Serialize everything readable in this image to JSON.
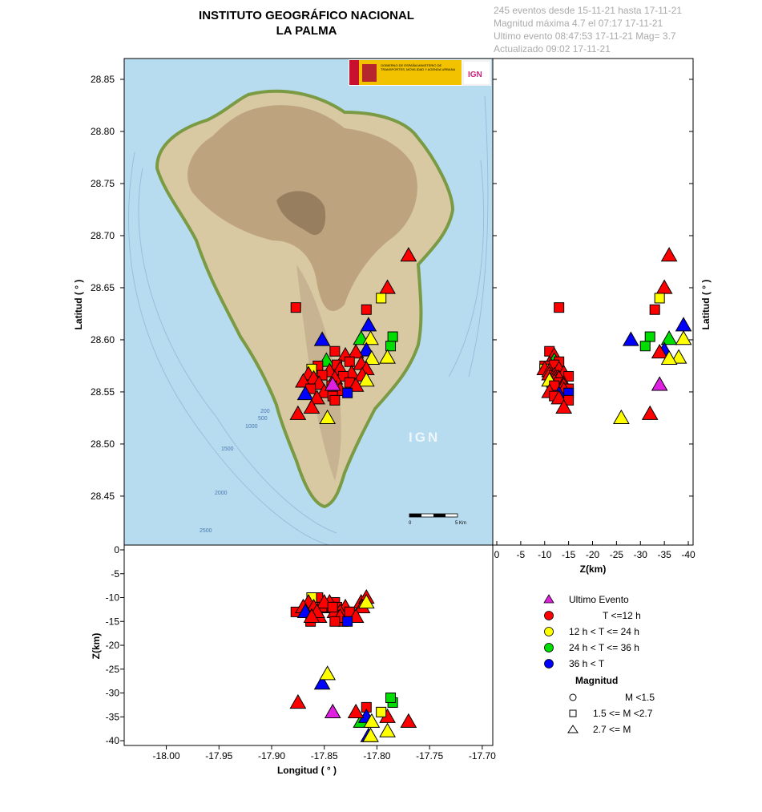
{
  "header": {
    "title_line1": "INSTITUTO GEOGRÁFICO NACIONAL",
    "title_line2": "LA PALMA",
    "info": [
      "245 eventos desde 15-11-21 hasta 17-11-21",
      "Magnitud máxima 4.7 el 07:17 17-11-21",
      "Ultimo evento   08:47:53 17-11-21  Mag= 3.7",
      "Actualizado   09:02  17-11-21"
    ]
  },
  "colors": {
    "last": "#e020e0",
    "t12": "#ff0000",
    "t24": "#ffff00",
    "t36": "#00dd00",
    "t36plus": "#0000ff",
    "sea": "#b7dcef",
    "land": "#d9c9a3"
  },
  "map_labels": {
    "contours": [
      "200",
      "500",
      "1000",
      "1500",
      "2000",
      "2500"
    ],
    "scale_start": "0",
    "scale_end": "5 Km",
    "watermark": "IGN",
    "logo_text": "GOBIERNO DE ESPAÑA  MINISTERIO DE TRANSPORTES, MOVILIDAD Y AGENDA URBANA",
    "logo_badge": "IGN"
  },
  "legend": {
    "items": [
      {
        "label": "Ultimo Evento",
        "symbol": "triangle",
        "color": "last"
      },
      {
        "label": "T <=12 h",
        "symbol": "circle",
        "color": "t12"
      },
      {
        "label": "12 h  < T <= 24 h",
        "symbol": "circle",
        "color": "t24"
      },
      {
        "label": "24 h  < T <= 36 h",
        "symbol": "circle",
        "color": "t36"
      },
      {
        "label": "36 h <  T",
        "symbol": "circle",
        "color": "t36plus"
      }
    ],
    "magnitude_title": "Magnitud",
    "magnitude_items": [
      {
        "label": "M <1.5",
        "symbol": "circle"
      },
      {
        "label": "1.5 <= M <2.7",
        "symbol": "square"
      },
      {
        "label": "2.7 <= M",
        "symbol": "triangle"
      }
    ]
  },
  "chart_data": [
    {
      "type": "scatter",
      "panel": "map",
      "xlabel": "",
      "ylabel": "Latitud ( ° )",
      "xlim": [
        -18.04,
        -17.69
      ],
      "ylim": [
        28.403,
        28.87
      ],
      "yticks": [
        "28.45",
        "28.50",
        "28.55",
        "28.60",
        "28.65",
        "28.70",
        "28.75",
        "28.80",
        "28.85"
      ],
      "yticks_values": [
        28.45,
        28.5,
        28.55,
        28.6,
        28.65,
        28.7,
        28.75,
        28.8,
        28.85
      ],
      "points": [
        {
          "lon": -17.77,
          "lat": 28.681,
          "depth": 36,
          "mag": "L",
          "t": "t12"
        },
        {
          "lon": -17.79,
          "lat": 28.65,
          "depth": 35,
          "mag": "L",
          "t": "t12"
        },
        {
          "lon": -17.796,
          "lat": 28.64,
          "depth": 34,
          "mag": "M",
          "t": "t24"
        },
        {
          "lon": -17.877,
          "lat": 28.631,
          "depth": 13,
          "mag": "M",
          "t": "t12"
        },
        {
          "lon": -17.81,
          "lat": 28.629,
          "depth": 33,
          "mag": "M",
          "t": "t12"
        },
        {
          "lon": -17.808,
          "lat": 28.614,
          "depth": 39,
          "mag": "L",
          "t": "t36plus"
        },
        {
          "lon": -17.785,
          "lat": 28.603,
          "depth": 32,
          "mag": "M",
          "t": "t36"
        },
        {
          "lon": -17.815,
          "lat": 28.601,
          "depth": 36,
          "mag": "L",
          "t": "t36"
        },
        {
          "lon": -17.806,
          "lat": 28.601,
          "depth": 39,
          "mag": "L",
          "t": "t24"
        },
        {
          "lon": -17.852,
          "lat": 28.6,
          "depth": 28,
          "mag": "L",
          "t": "t36plus"
        },
        {
          "lon": -17.787,
          "lat": 28.594,
          "depth": 31,
          "mag": "M",
          "t": "t36"
        },
        {
          "lon": -17.81,
          "lat": 28.59,
          "depth": 35,
          "mag": "L",
          "t": "t36plus"
        },
        {
          "lon": -17.84,
          "lat": 28.589,
          "depth": 11,
          "mag": "M",
          "t": "t12"
        },
        {
          "lon": -17.82,
          "lat": 28.588,
          "depth": 34,
          "mag": "L",
          "t": "t12"
        },
        {
          "lon": -17.83,
          "lat": 28.585,
          "depth": 12,
          "mag": "L",
          "t": "t12"
        },
        {
          "lon": -17.79,
          "lat": 28.583,
          "depth": 38,
          "mag": "L",
          "t": "t24"
        },
        {
          "lon": -17.805,
          "lat": 28.582,
          "depth": 36,
          "mag": "L",
          "t": "t24"
        },
        {
          "lon": -17.848,
          "lat": 28.58,
          "depth": 12,
          "mag": "L",
          "t": "t36"
        },
        {
          "lon": -17.826,
          "lat": 28.579,
          "depth": 13,
          "mag": "M",
          "t": "t12"
        },
        {
          "lon": -17.815,
          "lat": 28.577,
          "depth": 11,
          "mag": "L",
          "t": "t12"
        },
        {
          "lon": -17.856,
          "lat": 28.575,
          "depth": 10,
          "mag": "M",
          "t": "t12"
        },
        {
          "lon": -17.838,
          "lat": 28.576,
          "depth": 12,
          "mag": "M",
          "t": "t12"
        },
        {
          "lon": -17.862,
          "lat": 28.572,
          "depth": 10,
          "mag": "M",
          "t": "t24"
        },
        {
          "lon": -17.835,
          "lat": 28.572,
          "depth": 13,
          "mag": "L",
          "t": "t12"
        },
        {
          "lon": -17.81,
          "lat": 28.572,
          "depth": 10,
          "mag": "L",
          "t": "t12"
        },
        {
          "lon": -17.845,
          "lat": 28.57,
          "depth": 11,
          "mag": "L",
          "t": "t12"
        },
        {
          "lon": -17.824,
          "lat": 28.568,
          "depth": 14,
          "mag": "L",
          "t": "t12"
        },
        {
          "lon": -17.865,
          "lat": 28.567,
          "depth": 11,
          "mag": "L",
          "t": "t12"
        },
        {
          "lon": -17.852,
          "lat": 28.566,
          "depth": 12,
          "mag": "M",
          "t": "t12"
        },
        {
          "lon": -17.814,
          "lat": 28.566,
          "depth": 12,
          "mag": "L",
          "t": "t12"
        },
        {
          "lon": -17.832,
          "lat": 28.565,
          "depth": 15,
          "mag": "M",
          "t": "t12"
        },
        {
          "lon": -17.86,
          "lat": 28.563,
          "depth": 12,
          "mag": "L",
          "t": "t12"
        },
        {
          "lon": -17.84,
          "lat": 28.563,
          "depth": 13,
          "mag": "L",
          "t": "t12"
        },
        {
          "lon": -17.87,
          "lat": 28.56,
          "depth": 12,
          "mag": "L",
          "t": "t12"
        },
        {
          "lon": -17.81,
          "lat": 28.561,
          "depth": 11,
          "mag": "L",
          "t": "t24"
        },
        {
          "lon": -17.826,
          "lat": 28.559,
          "depth": 13,
          "mag": "M",
          "t": "t12"
        },
        {
          "lon": -17.855,
          "lat": 28.558,
          "depth": 14,
          "mag": "L",
          "t": "t12"
        },
        {
          "lon": -17.82,
          "lat": 28.556,
          "depth": 14,
          "mag": "L",
          "t": "t12"
        },
        {
          "lon": -17.843,
          "lat": 28.556,
          "depth": 12,
          "mag": "M",
          "t": "t12"
        },
        {
          "lon": -17.863,
          "lat": 28.553,
          "depth": 15,
          "mag": "M",
          "t": "t12"
        },
        {
          "lon": -17.835,
          "lat": 28.552,
          "depth": 14,
          "mag": "L",
          "t": "t12"
        },
        {
          "lon": -17.85,
          "lat": 28.55,
          "depth": 11,
          "mag": "L",
          "t": "t12"
        },
        {
          "lon": -17.828,
          "lat": 28.549,
          "depth": 15,
          "mag": "M",
          "t": "t36plus"
        },
        {
          "lon": -17.868,
          "lat": 28.548,
          "depth": 13,
          "mag": "L",
          "t": "t36plus"
        },
        {
          "lon": -17.842,
          "lat": 28.546,
          "depth": 12,
          "mag": "M",
          "t": "t12"
        },
        {
          "lon": -17.857,
          "lat": 28.544,
          "depth": 13,
          "mag": "L",
          "t": "t12"
        },
        {
          "lon": -17.84,
          "lat": 28.542,
          "depth": 15,
          "mag": "M",
          "t": "t12"
        },
        {
          "lon": -17.862,
          "lat": 28.535,
          "depth": 14,
          "mag": "L",
          "t": "t12"
        },
        {
          "lon": -17.875,
          "lat": 28.529,
          "depth": 32,
          "mag": "L",
          "t": "t12"
        },
        {
          "lon": -17.847,
          "lat": 28.525,
          "depth": 26,
          "mag": "L",
          "t": "t24"
        },
        {
          "lon": -17.842,
          "lat": 28.557,
          "depth": 34,
          "mag": "L",
          "t": "last"
        }
      ]
    },
    {
      "type": "scatter",
      "panel": "latitude-depth",
      "xlabel": "Z(km)",
      "ylabel": "Latitud ( ° )",
      "xlim": [
        0,
        -41
      ],
      "xticks": [
        "0",
        "-5",
        "-10",
        "-15",
        "-20",
        "-25",
        "-30",
        "-35",
        "-40"
      ],
      "xticks_values": [
        0,
        -5,
        -10,
        -15,
        -20,
        -25,
        -30,
        -35,
        -40
      ],
      "series_ref": "map"
    },
    {
      "type": "scatter",
      "panel": "longitude-depth",
      "xlabel": "Longitud ( ° )",
      "ylabel": "Z(km)",
      "ylim": [
        0,
        -41
      ],
      "xticks": [
        "-18.00",
        "-17.95",
        "-17.90",
        "-17.85",
        "-17.80",
        "-17.75",
        "-17.70"
      ],
      "xticks_values": [
        -18.0,
        -17.95,
        -17.9,
        -17.85,
        -17.8,
        -17.75,
        -17.7
      ],
      "yticks": [
        "0",
        "-5",
        "-10",
        "-15",
        "-20",
        "-25",
        "-30",
        "-35",
        "-40"
      ],
      "yticks_values": [
        0,
        -5,
        -10,
        -15,
        -20,
        -25,
        -30,
        -35,
        -40
      ],
      "series_ref": "map"
    }
  ]
}
